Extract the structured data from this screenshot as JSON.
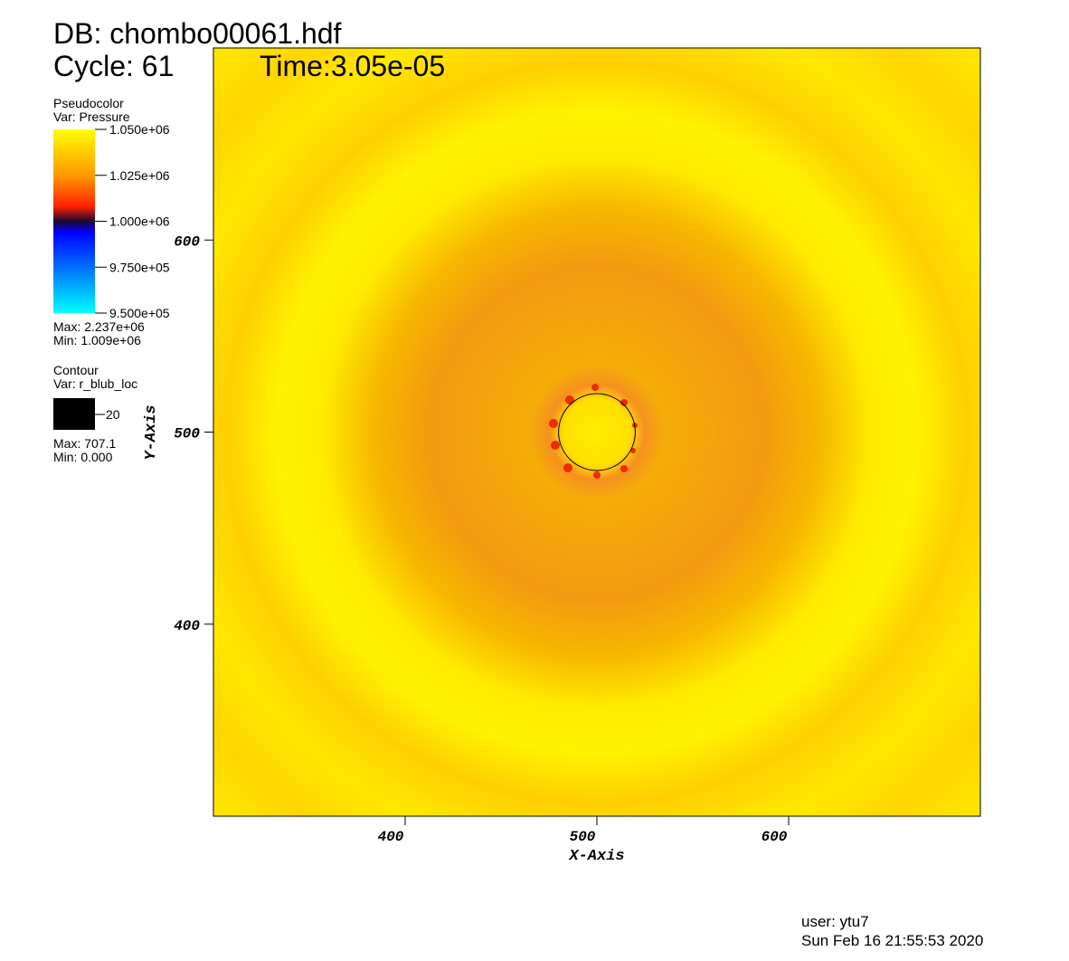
{
  "chart_data": {
    "type": "pseudocolor",
    "db": "DB: chombo00061.hdf",
    "cycle": "Cycle: 61",
    "time": "Time:3.05e-05",
    "x_label": "X-Axis",
    "y_label": "Y-Axis",
    "xlim": [
      300,
      700
    ],
    "ylim": [
      300,
      700
    ],
    "xticks": [
      400,
      500,
      600
    ],
    "yticks": [
      400,
      500,
      600
    ],
    "legend": {
      "plot": "Pseudocolor",
      "var": "Var: Pressure",
      "clim": [
        950000,
        1050000
      ],
      "ticks": [
        {
          "value": 1050000,
          "label": "1.050e+06"
        },
        {
          "value": 1025000,
          "label": "1.025e+06"
        },
        {
          "value": 1000000,
          "label": "1.000e+06"
        },
        {
          "value": 975000,
          "label": "9.750e+05"
        },
        {
          "value": 950000,
          "label": "9.500e+05"
        }
      ],
      "max": "Max: 2.237e+06",
      "min": "Min:  1.009e+06"
    },
    "contour": {
      "plot": "Contour",
      "var": "Var: r_blub_loc",
      "levels": [
        20
      ],
      "max": "Max: 707.1",
      "min": "Min: 0.000"
    },
    "user": "user: ytu7",
    "date": "Sun Feb 16 21:55:53 2020"
  }
}
